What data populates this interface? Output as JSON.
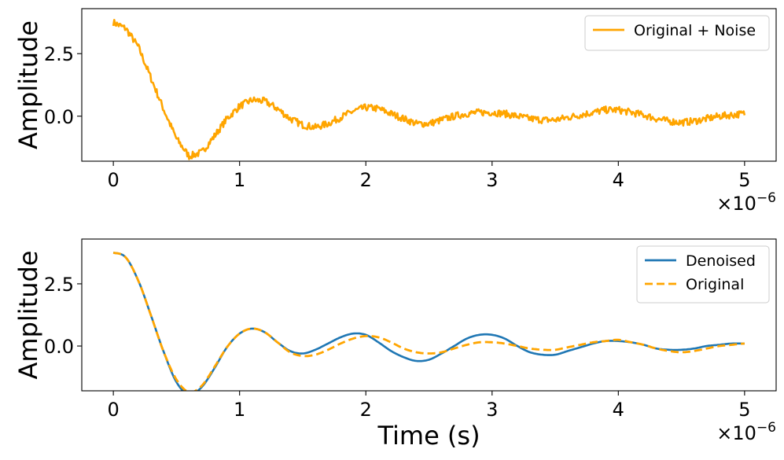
{
  "chart_data": [
    {
      "type": "line",
      "title": "",
      "xlabel": "",
      "ylabel": "Amplitude",
      "x_offset_label": "×10⁻⁶",
      "xlim": [
        -2.5e-07,
        5.25e-06
      ],
      "ylim": [
        -1.8,
        4.3
      ],
      "x_ticks": [
        0,
        1e-06,
        2e-06,
        3e-06,
        4e-06,
        5e-06
      ],
      "x_tick_labels": [
        "0",
        "1",
        "2",
        "3",
        "4",
        "5"
      ],
      "y_ticks": [
        0.0,
        2.5
      ],
      "y_tick_labels": [
        "0.0",
        "2.5"
      ],
      "grid": false,
      "legend_position": "upper right",
      "series": [
        {
          "name": "Original + Noise",
          "color": "#ffa500",
          "style": "solid",
          "x": [
            0,
            1e-07,
            2e-07,
            3e-07,
            4e-07,
            5e-07,
            6e-07,
            7e-07,
            8e-07,
            9e-07,
            1e-06,
            1.1e-06,
            1.2e-06,
            1.3e-06,
            1.4e-06,
            1.5e-06,
            1.6e-06,
            1.7e-06,
            1.8e-06,
            1.9e-06,
            2e-06,
            2.1e-06,
            2.2e-06,
            2.3e-06,
            2.4e-06,
            2.5e-06,
            2.6e-06,
            2.7e-06,
            2.8e-06,
            2.9e-06,
            3e-06,
            3.1e-06,
            3.2e-06,
            3.3e-06,
            3.4e-06,
            3.5e-06,
            3.6e-06,
            3.7e-06,
            3.8e-06,
            3.9e-06,
            4e-06,
            4.1e-06,
            4.2e-06,
            4.3e-06,
            4.4e-06,
            4.5e-06,
            4.6e-06,
            4.7e-06,
            4.8e-06,
            4.9e-06,
            5e-06
          ],
          "y": [
            3.75,
            3.5,
            2.75,
            1.5,
            0.25,
            -0.9,
            -1.6,
            -1.45,
            -0.8,
            -0.1,
            0.4,
            0.65,
            0.6,
            0.3,
            -0.1,
            -0.35,
            -0.45,
            -0.3,
            -0.05,
            0.2,
            0.35,
            0.3,
            0.1,
            -0.1,
            -0.3,
            -0.3,
            -0.15,
            0.0,
            0.1,
            0.15,
            0.15,
            0.1,
            0.0,
            -0.1,
            -0.15,
            -0.15,
            -0.05,
            0.05,
            0.15,
            0.25,
            0.25,
            0.15,
            0.05,
            -0.1,
            -0.2,
            -0.25,
            -0.2,
            -0.1,
            0.0,
            0.05,
            0.1
          ]
        }
      ]
    },
    {
      "type": "line",
      "title": "",
      "xlabel": "Time (s)",
      "ylabel": "Amplitude",
      "x_offset_label": "×10⁻⁶",
      "xlim": [
        -2.5e-07,
        5.25e-06
      ],
      "ylim": [
        -1.8,
        4.3
      ],
      "x_ticks": [
        0,
        1e-06,
        2e-06,
        3e-06,
        4e-06,
        5e-06
      ],
      "x_tick_labels": [
        "0",
        "1",
        "2",
        "3",
        "4",
        "5"
      ],
      "y_ticks": [
        0.0,
        2.5
      ],
      "y_tick_labels": [
        "0.0",
        "2.5"
      ],
      "grid": false,
      "legend_position": "upper right",
      "series": [
        {
          "name": "Denoised",
          "color": "#1f77b4",
          "style": "solid",
          "x": [
            0,
            1e-07,
            2e-07,
            3e-07,
            4e-07,
            5e-07,
            6e-07,
            7e-07,
            8e-07,
            9e-07,
            1e-06,
            1.1e-06,
            1.2e-06,
            1.3e-06,
            1.4e-06,
            1.5e-06,
            1.6e-06,
            1.7e-06,
            1.8e-06,
            1.9e-06,
            2e-06,
            2.1e-06,
            2.2e-06,
            2.3e-06,
            2.4e-06,
            2.5e-06,
            2.6e-06,
            2.7e-06,
            2.8e-06,
            2.9e-06,
            3e-06,
            3.1e-06,
            3.2e-06,
            3.3e-06,
            3.4e-06,
            3.5e-06,
            3.6e-06,
            3.7e-06,
            3.8e-06,
            3.9e-06,
            4e-06,
            4.1e-06,
            4.2e-06,
            4.3e-06,
            4.4e-06,
            4.5e-06,
            4.6e-06,
            4.7e-06,
            4.8e-06,
            4.9e-06,
            5e-06
          ],
          "y": [
            3.75,
            3.55,
            2.6,
            1.2,
            -0.25,
            -1.45,
            -1.95,
            -1.65,
            -0.9,
            -0.05,
            0.5,
            0.7,
            0.55,
            0.15,
            -0.2,
            -0.3,
            -0.15,
            0.1,
            0.35,
            0.5,
            0.45,
            0.15,
            -0.2,
            -0.45,
            -0.6,
            -0.55,
            -0.3,
            0.0,
            0.3,
            0.45,
            0.45,
            0.3,
            0.0,
            -0.25,
            -0.35,
            -0.35,
            -0.2,
            -0.05,
            0.1,
            0.2,
            0.2,
            0.15,
            0.05,
            -0.1,
            -0.15,
            -0.15,
            -0.1,
            0.0,
            0.05,
            0.1,
            0.1
          ]
        },
        {
          "name": "Original",
          "color": "#ffa500",
          "style": "dashed",
          "x": [
            0,
            1e-07,
            2e-07,
            3e-07,
            4e-07,
            5e-07,
            6e-07,
            7e-07,
            8e-07,
            9e-07,
            1e-06,
            1.1e-06,
            1.2e-06,
            1.3e-06,
            1.4e-06,
            1.5e-06,
            1.6e-06,
            1.7e-06,
            1.8e-06,
            1.9e-06,
            2e-06,
            2.1e-06,
            2.2e-06,
            2.3e-06,
            2.4e-06,
            2.5e-06,
            2.6e-06,
            2.7e-06,
            2.8e-06,
            2.9e-06,
            3e-06,
            3.1e-06,
            3.2e-06,
            3.3e-06,
            3.4e-06,
            3.5e-06,
            3.6e-06,
            3.7e-06,
            3.8e-06,
            3.9e-06,
            4e-06,
            4.1e-06,
            4.2e-06,
            4.3e-06,
            4.4e-06,
            4.5e-06,
            4.6e-06,
            4.7e-06,
            4.8e-06,
            4.9e-06,
            5e-06
          ],
          "y": [
            3.75,
            3.55,
            2.6,
            1.2,
            -0.25,
            -1.35,
            -1.85,
            -1.6,
            -0.85,
            -0.05,
            0.5,
            0.7,
            0.55,
            0.15,
            -0.25,
            -0.4,
            -0.35,
            -0.15,
            0.1,
            0.3,
            0.4,
            0.35,
            0.15,
            -0.1,
            -0.25,
            -0.3,
            -0.25,
            -0.1,
            0.05,
            0.15,
            0.15,
            0.1,
            0.0,
            -0.1,
            -0.15,
            -0.15,
            -0.05,
            0.05,
            0.15,
            0.2,
            0.25,
            0.15,
            0.05,
            -0.1,
            -0.2,
            -0.25,
            -0.2,
            -0.1,
            0.0,
            0.05,
            0.1
          ]
        }
      ]
    }
  ]
}
